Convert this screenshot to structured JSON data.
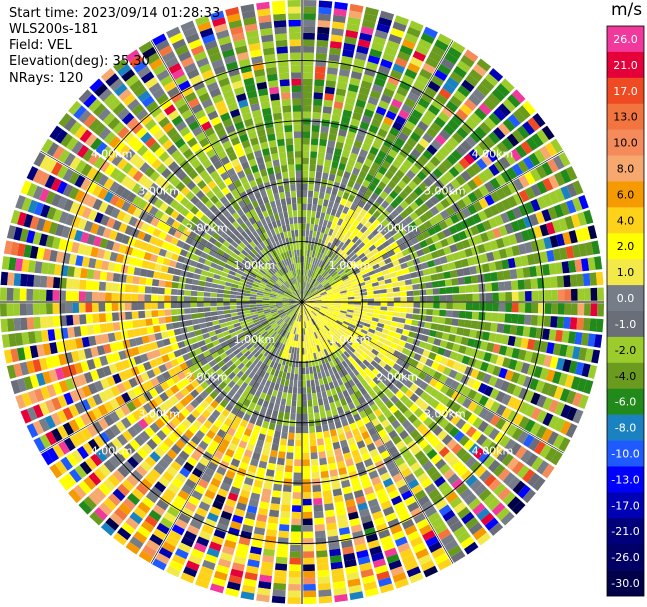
{
  "header": {
    "start_time": "Start time: 2023/09/14 01:28:33",
    "site": "WLS200s-181",
    "field": "Field: VEL",
    "elevation": "Elevation(deg): 35.30",
    "nrays": "NRays: 120"
  },
  "colorbar": {
    "unit": "m/s",
    "levels": [
      {
        "label": "26.0",
        "color": "#f0399b"
      },
      {
        "label": "21.0",
        "color": "#e5003a"
      },
      {
        "label": "17.0",
        "color": "#f04a22"
      },
      {
        "label": "13.0",
        "color": "#f2743e"
      },
      {
        "label": "10.0",
        "color": "#f58a5a"
      },
      {
        "label": "8.0",
        "color": "#f7a86e"
      },
      {
        "label": "6.0",
        "color": "#f59a00"
      },
      {
        "label": "4.0",
        "color": "#ffd21a"
      },
      {
        "label": "2.0",
        "color": "#ffff00"
      },
      {
        "label": "1.0",
        "color": "#f3ea4a"
      },
      {
        "label": "0.0",
        "color": "#777d88"
      },
      {
        "label": "-1.0",
        "color": "#696e78"
      },
      {
        "label": "-2.0",
        "color": "#9ccc2c"
      },
      {
        "label": "-4.0",
        "color": "#6a9a1e"
      },
      {
        "label": "-6.0",
        "color": "#218a1a"
      },
      {
        "label": "-8.0",
        "color": "#1a82c0"
      },
      {
        "label": "-10.0",
        "color": "#1e5aff"
      },
      {
        "label": "-13.0",
        "color": "#0000ff"
      },
      {
        "label": "-17.0",
        "color": "#0000b4"
      },
      {
        "label": "-21.0",
        "color": "#00007a"
      },
      {
        "label": "-26.0",
        "color": "#000066"
      },
      {
        "label": "-30.0",
        "color": "#00004a"
      }
    ]
  },
  "chart_data": {
    "type": "heatmap",
    "field": "VEL",
    "units": "m/s",
    "rings_km": [
      1.0,
      2.0,
      3.0,
      4.0
    ],
    "ring_labels": [
      "1.00km",
      "2.00km",
      "3.00km",
      "4.00km"
    ],
    "max_range_km": 5.0,
    "n_rays": 120,
    "n_gates": 46,
    "velocity_range": [
      -30,
      26
    ]
  }
}
